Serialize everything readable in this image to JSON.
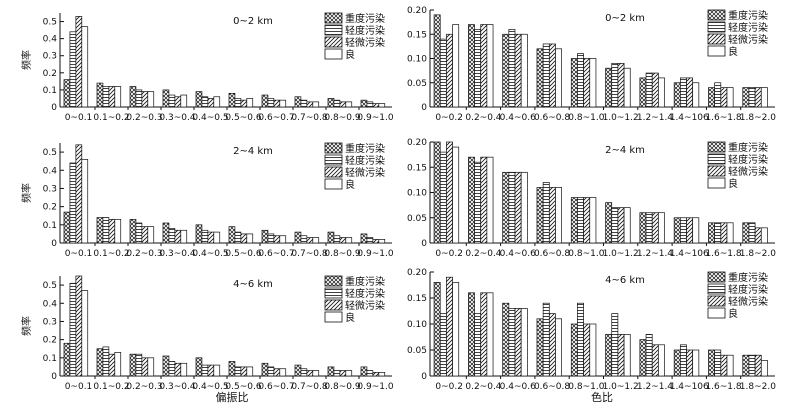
{
  "figure": {
    "left_xlabel": "偏振比",
    "right_xlabel": "色比"
  },
  "legend_entries": [
    "重度污染",
    "轻度污染",
    "轻微污染",
    "良"
  ],
  "chart_data": [
    {
      "type": "bar",
      "ylabel": "频率",
      "annotation": "0~2 km",
      "ylim": [
        0,
        0.55
      ],
      "yticks": [
        "0",
        "0.1",
        "0.2",
        "0.3",
        "0.4",
        "0.5"
      ],
      "ytick_values": [
        0,
        0.1,
        0.2,
        0.3,
        0.4,
        0.5
      ],
      "categories": [
        "0~0.1",
        "0.1~0.2",
        "0.2~0.3",
        "0.3~0.4",
        "0.4~0.5",
        "0.5~0.6",
        "0.6~0.7",
        "0.7~0.8",
        "0.8~0.9",
        "0.9~1.0"
      ],
      "series": [
        {
          "name": "重度污染",
          "values": [
            0.16,
            0.14,
            0.12,
            0.1,
            0.09,
            0.08,
            0.07,
            0.06,
            0.05,
            0.04
          ]
        },
        {
          "name": "轻度污染",
          "values": [
            0.44,
            0.12,
            0.1,
            0.07,
            0.06,
            0.05,
            0.05,
            0.04,
            0.04,
            0.03
          ]
        },
        {
          "name": "轻微污染",
          "values": [
            0.53,
            0.12,
            0.09,
            0.06,
            0.05,
            0.04,
            0.04,
            0.03,
            0.03,
            0.02
          ]
        },
        {
          "name": "良",
          "values": [
            0.47,
            0.12,
            0.09,
            0.07,
            0.06,
            0.05,
            0.04,
            0.03,
            0.03,
            0.02
          ]
        }
      ]
    },
    {
      "type": "bar",
      "ylabel": "",
      "annotation": "0~2 km",
      "ylim": [
        0,
        0.2
      ],
      "yticks": [
        "0",
        "0.05",
        "0.10",
        "0.15",
        "0.20"
      ],
      "ytick_values": [
        0,
        0.05,
        0.1,
        0.15,
        0.2
      ],
      "categories": [
        "0~0.2",
        "0.2~0.4",
        "0.4~0.6",
        "0.6~0.8",
        "0.8~1.0",
        "1.0~1.2",
        "1.2~1.4",
        "1.4~106",
        "1.6~1.8",
        "1.8~2.0"
      ],
      "series": [
        {
          "name": "重度污染",
          "values": [
            0.19,
            0.17,
            0.15,
            0.12,
            0.1,
            0.08,
            0.06,
            0.05,
            0.04,
            0.04
          ]
        },
        {
          "name": "轻度污染",
          "values": [
            0.14,
            0.16,
            0.16,
            0.13,
            0.11,
            0.09,
            0.07,
            0.06,
            0.05,
            0.04
          ]
        },
        {
          "name": "轻微污染",
          "values": [
            0.15,
            0.17,
            0.15,
            0.13,
            0.1,
            0.09,
            0.07,
            0.06,
            0.04,
            0.04
          ]
        },
        {
          "name": "良",
          "values": [
            0.17,
            0.17,
            0.15,
            0.12,
            0.1,
            0.08,
            0.06,
            0.05,
            0.04,
            0.04
          ]
        }
      ]
    },
    {
      "type": "bar",
      "ylabel": "频率",
      "annotation": "2~4 km",
      "ylim": [
        0,
        0.55
      ],
      "yticks": [
        "0",
        "0.1",
        "0.2",
        "0.3",
        "0.4",
        "0.5"
      ],
      "ytick_values": [
        0,
        0.1,
        0.2,
        0.3,
        0.4,
        0.5
      ],
      "categories": [
        "0~0.1",
        "0.1~0.2",
        "0.2~0.3",
        "0.3~0.4",
        "0.4~0.5",
        "0.5~0.6",
        "0.6~0.7",
        "0.7~0.8",
        "0.8~0.9",
        "0.9~1.0"
      ],
      "series": [
        {
          "name": "重度污染",
          "values": [
            0.17,
            0.14,
            0.13,
            0.11,
            0.1,
            0.09,
            0.07,
            0.06,
            0.06,
            0.05
          ]
        },
        {
          "name": "轻度污染",
          "values": [
            0.44,
            0.14,
            0.11,
            0.08,
            0.07,
            0.06,
            0.05,
            0.04,
            0.04,
            0.03
          ]
        },
        {
          "name": "轻微污染",
          "values": [
            0.54,
            0.13,
            0.09,
            0.07,
            0.06,
            0.05,
            0.04,
            0.03,
            0.03,
            0.02
          ]
        },
        {
          "name": "良",
          "values": [
            0.46,
            0.13,
            0.09,
            0.07,
            0.06,
            0.05,
            0.04,
            0.03,
            0.03,
            0.02
          ]
        }
      ]
    },
    {
      "type": "bar",
      "ylabel": "",
      "annotation": "2~4 km",
      "ylim": [
        0,
        0.2
      ],
      "yticks": [
        "0",
        "0.05",
        "0.10",
        "0.15",
        "0.20"
      ],
      "ytick_values": [
        0,
        0.05,
        0.1,
        0.15,
        0.2
      ],
      "categories": [
        "0~0.2",
        "0.2~0.4",
        "0.4~0.6",
        "0.6~0.8",
        "0.8~1.0",
        "1.0~1.2",
        "1.2~1.4",
        "1.4~106",
        "1.6~1.8",
        "1.8~2.0"
      ],
      "series": [
        {
          "name": "重度污染",
          "values": [
            0.2,
            0.17,
            0.14,
            0.11,
            0.09,
            0.08,
            0.06,
            0.05,
            0.04,
            0.04
          ]
        },
        {
          "name": "轻度污染",
          "values": [
            0.18,
            0.16,
            0.14,
            0.12,
            0.09,
            0.07,
            0.06,
            0.05,
            0.04,
            0.04
          ]
        },
        {
          "name": "轻微污染",
          "values": [
            0.2,
            0.17,
            0.14,
            0.11,
            0.09,
            0.07,
            0.06,
            0.05,
            0.04,
            0.03
          ]
        },
        {
          "name": "良",
          "values": [
            0.19,
            0.17,
            0.14,
            0.11,
            0.09,
            0.07,
            0.06,
            0.05,
            0.04,
            0.03
          ]
        }
      ]
    },
    {
      "type": "bar",
      "ylabel": "频率",
      "annotation": "4~6 km",
      "ylim": [
        0,
        0.55
      ],
      "yticks": [
        "0",
        "0.1",
        "0.2",
        "0.3",
        "0.4",
        "0.5"
      ],
      "ytick_values": [
        0,
        0.1,
        0.2,
        0.3,
        0.4,
        0.5
      ],
      "categories": [
        "0~0.1",
        "0.1~0.2",
        "0.2~0.3",
        "0.3~0.4",
        "0.4~0.5",
        "0.5~0.6",
        "0.6~0.7",
        "0.7~0.8",
        "0.8~0.9",
        "0.9~1.0"
      ],
      "series": [
        {
          "name": "重度污染",
          "values": [
            0.18,
            0.15,
            0.12,
            0.11,
            0.1,
            0.08,
            0.07,
            0.06,
            0.05,
            0.05
          ]
        },
        {
          "name": "轻度污染",
          "values": [
            0.51,
            0.16,
            0.12,
            0.08,
            0.06,
            0.05,
            0.05,
            0.04,
            0.03,
            0.03
          ]
        },
        {
          "name": "轻微污染",
          "values": [
            0.55,
            0.12,
            0.1,
            0.07,
            0.06,
            0.05,
            0.04,
            0.03,
            0.03,
            0.02
          ]
        },
        {
          "name": "良",
          "values": [
            0.47,
            0.13,
            0.1,
            0.07,
            0.06,
            0.05,
            0.04,
            0.03,
            0.03,
            0.02
          ]
        }
      ]
    },
    {
      "type": "bar",
      "ylabel": "",
      "annotation": "4~6 km",
      "ylim": [
        0,
        0.2
      ],
      "yticks": [
        "0",
        "0.05",
        "0.10",
        "0.15",
        "0.20"
      ],
      "ytick_values": [
        0,
        0.05,
        0.1,
        0.15,
        0.2
      ],
      "categories": [
        "0~0.2",
        "0.2~0.4",
        "0.4~0.6",
        "0.6~0.8",
        "0.8~1.0",
        "1.0~1.2",
        "1.2~1.4",
        "1.4~106",
        "1.6~1.8",
        "1.8~2.0"
      ],
      "series": [
        {
          "name": "重度污染",
          "values": [
            0.18,
            0.16,
            0.14,
            0.11,
            0.1,
            0.08,
            0.07,
            0.05,
            0.05,
            0.04
          ]
        },
        {
          "name": "轻度污染",
          "values": [
            0.12,
            0.12,
            0.13,
            0.14,
            0.14,
            0.12,
            0.08,
            0.06,
            0.05,
            0.04
          ]
        },
        {
          "name": "轻微污染",
          "values": [
            0.19,
            0.16,
            0.13,
            0.12,
            0.1,
            0.08,
            0.06,
            0.05,
            0.04,
            0.04
          ]
        },
        {
          "name": "良",
          "values": [
            0.18,
            0.16,
            0.13,
            0.11,
            0.1,
            0.08,
            0.06,
            0.05,
            0.04,
            0.03
          ]
        }
      ]
    }
  ]
}
